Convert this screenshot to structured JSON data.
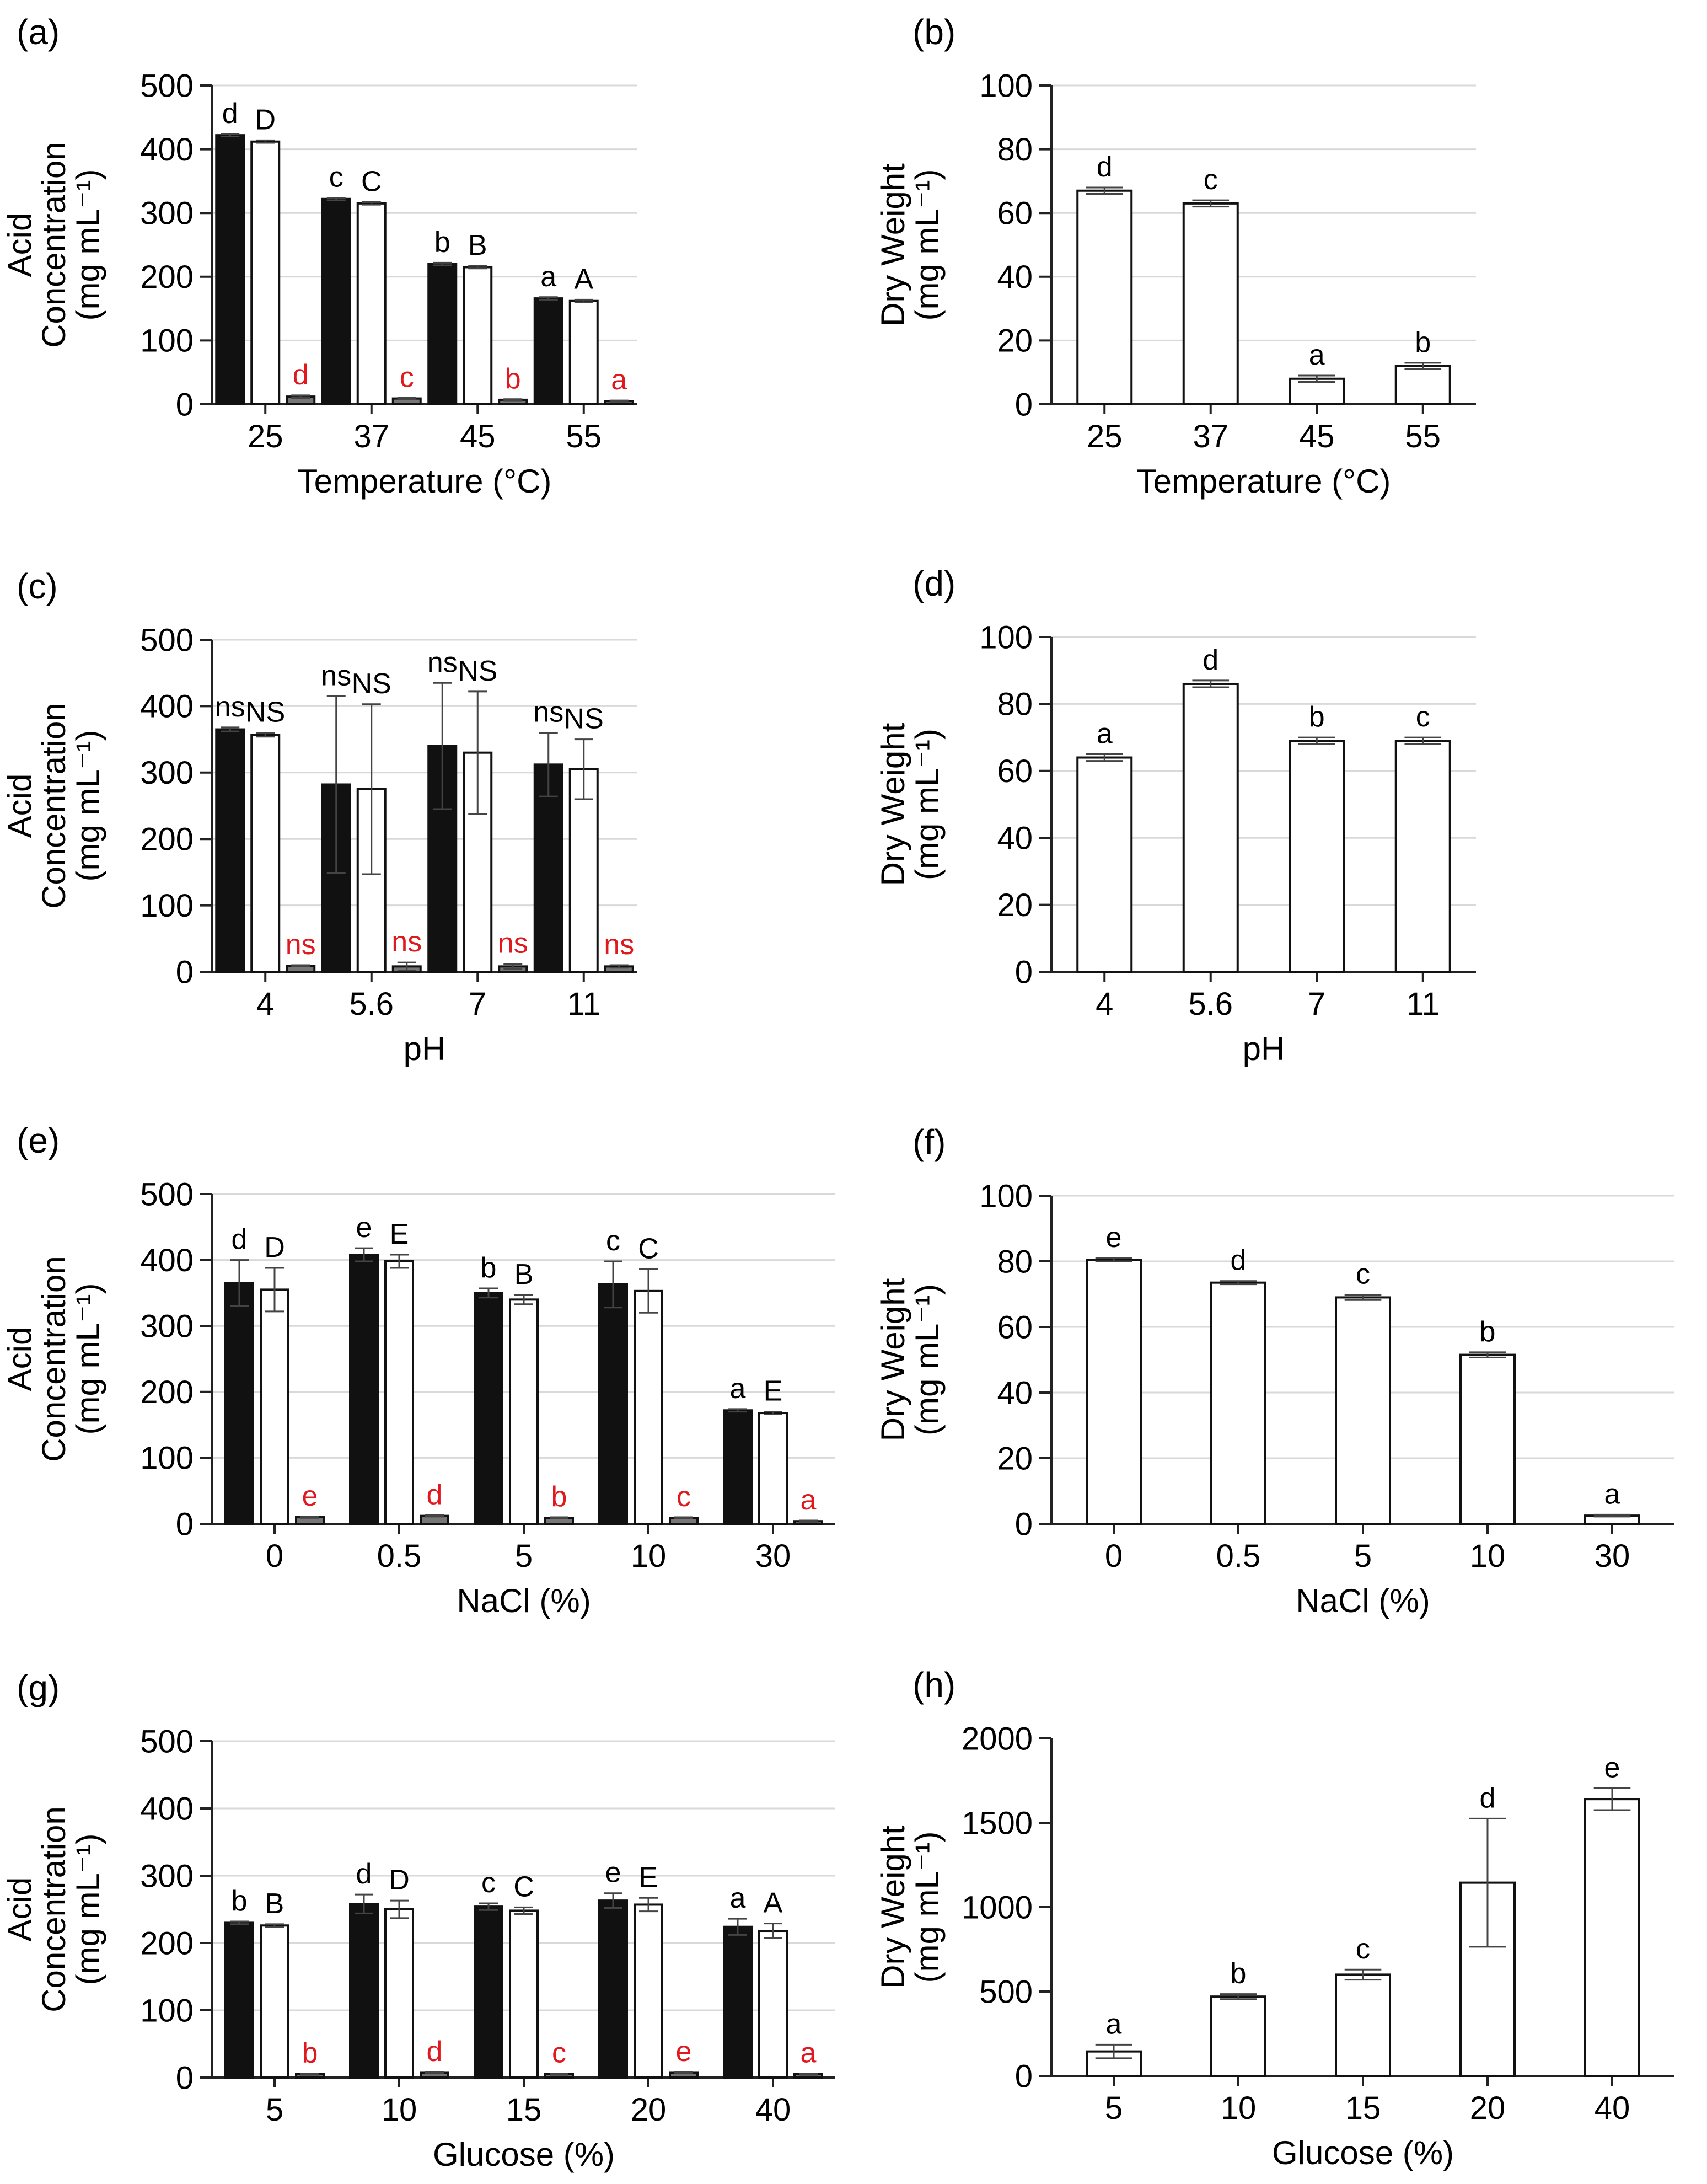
{
  "figure": {
    "panel_count": 8
  },
  "colors": {
    "black_bar": "#111111",
    "white_bar": "#ffffff",
    "gray_bar": "#777777",
    "axis": "#222222",
    "grid": "#d9d9d9",
    "red_label": "#e0191f"
  },
  "chart_data": [
    {
      "panel": "(a)",
      "type": "bar",
      "xlabel": "Temperature (°C)",
      "ylabel": [
        "Acid",
        "Concentration",
        "(mg mL⁻¹)"
      ],
      "ylim": [
        0,
        500
      ],
      "yticks": [
        "0",
        "100",
        "200",
        "300",
        "400",
        "500"
      ],
      "grid": true,
      "categories": [
        "25",
        "37",
        "45",
        "55"
      ],
      "series": [
        {
          "name": "black",
          "style": "black",
          "values": [
            422,
            322,
            220,
            166
          ],
          "errors": [
            2,
            2,
            2,
            2
          ],
          "labels": [
            "d",
            "c",
            "b",
            "a"
          ],
          "label_color": "black"
        },
        {
          "name": "white",
          "style": "white",
          "values": [
            412,
            315,
            215,
            162
          ],
          "errors": [
            2,
            2,
            2,
            2
          ],
          "labels": [
            "D",
            "C",
            "B",
            "A"
          ],
          "label_color": "black"
        },
        {
          "name": "gray",
          "style": "gray",
          "values": [
            12,
            9,
            7,
            5
          ],
          "errors": [
            2,
            1,
            1,
            1
          ],
          "labels": [
            "d",
            "c",
            "b",
            "a"
          ],
          "label_color": "red"
        }
      ]
    },
    {
      "panel": "(b)",
      "type": "bar",
      "xlabel": "Temperature (°C)",
      "ylabel": [
        "Dry Weight",
        "(mg mL⁻¹)"
      ],
      "ylim": [
        0,
        100
      ],
      "yticks": [
        "0",
        "20",
        "40",
        "60",
        "80",
        "100"
      ],
      "grid": true,
      "categories": [
        "25",
        "37",
        "45",
        "55"
      ],
      "series": [
        {
          "name": "dry weight",
          "style": "white",
          "values": [
            67,
            63,
            8,
            12
          ],
          "errors": [
            1,
            1,
            1,
            1
          ],
          "labels": [
            "d",
            "c",
            "a",
            "b"
          ],
          "label_color": "black"
        }
      ]
    },
    {
      "panel": "(c)",
      "type": "bar",
      "xlabel": "pH",
      "ylabel": [
        "Acid",
        "Concentration",
        "(mg mL⁻¹)"
      ],
      "ylim": [
        0,
        500
      ],
      "yticks": [
        "0",
        "100",
        "200",
        "300",
        "400",
        "500"
      ],
      "grid": true,
      "categories": [
        "4",
        "5.6",
        "7",
        "11"
      ],
      "series": [
        {
          "name": "black",
          "style": "black",
          "values": [
            365,
            282,
            340,
            312
          ],
          "errors": [
            3,
            133,
            95,
            48
          ],
          "labels": [
            "ns",
            "ns",
            "ns",
            "ns"
          ],
          "label_color": "black"
        },
        {
          "name": "white",
          "style": "white",
          "values": [
            357,
            275,
            330,
            305
          ],
          "errors": [
            3,
            128,
            92,
            45
          ],
          "labels": [
            "NS",
            "NS",
            "NS",
            "NS"
          ],
          "label_color": "black"
        },
        {
          "name": "gray",
          "style": "gray",
          "values": [
            9,
            8,
            8,
            8
          ],
          "errors": [
            1,
            6,
            4,
            2
          ],
          "labels": [
            "ns",
            "ns",
            "ns",
            "ns"
          ],
          "label_color": "red"
        }
      ]
    },
    {
      "panel": "(d)",
      "type": "bar",
      "xlabel": "pH",
      "ylabel": [
        "Dry Weight",
        "(mg mL⁻¹)"
      ],
      "ylim": [
        0,
        100
      ],
      "yticks": [
        "0",
        "20",
        "40",
        "60",
        "80",
        "100"
      ],
      "grid": true,
      "categories": [
        "4",
        "5.6",
        "7",
        "11"
      ],
      "series": [
        {
          "name": "dry weight",
          "style": "white",
          "values": [
            64,
            86,
            69,
            69
          ],
          "errors": [
            1,
            1,
            1,
            1
          ],
          "labels": [
            "a",
            "d",
            "b",
            "c"
          ],
          "label_color": "black"
        }
      ]
    },
    {
      "panel": "(e)",
      "type": "bar",
      "xlabel": "NaCl (%)",
      "ylabel": [
        "Acid",
        "Concentration",
        "(mg mL⁻¹)"
      ],
      "ylim": [
        0,
        500
      ],
      "yticks": [
        "0",
        "100",
        "200",
        "300",
        "400",
        "500"
      ],
      "grid": true,
      "categories": [
        "0",
        "0.5",
        "5",
        "10",
        "30"
      ],
      "series": [
        {
          "name": "black",
          "style": "black",
          "values": [
            365,
            408,
            350,
            363,
            172
          ],
          "errors": [
            35,
            10,
            7,
            35,
            2
          ],
          "labels": [
            "d",
            "e",
            "b",
            "c",
            "a"
          ],
          "label_color": "black"
        },
        {
          "name": "white",
          "style": "white",
          "values": [
            355,
            398,
            340,
            353,
            168
          ],
          "errors": [
            33,
            10,
            7,
            33,
            2
          ],
          "labels": [
            "D",
            "E",
            "B",
            "C",
            "E"
          ],
          "label_color": "black"
        },
        {
          "name": "gray",
          "style": "gray",
          "values": [
            10,
            12,
            9,
            9,
            4
          ],
          "errors": [
            1,
            1,
            1,
            1,
            1
          ],
          "labels": [
            "e",
            "d",
            "b",
            "c",
            "a"
          ],
          "label_color": "red"
        }
      ]
    },
    {
      "panel": "(f)",
      "type": "bar",
      "xlabel": "NaCl (%)",
      "ylabel": [
        "Dry Weight",
        "(mg mL⁻¹)"
      ],
      "ylim": [
        0,
        100
      ],
      "yticks": [
        "0",
        "20",
        "40",
        "60",
        "80",
        "100"
      ],
      "grid": true,
      "categories": [
        "0",
        "0.5",
        "5",
        "10",
        "30"
      ],
      "series": [
        {
          "name": "dry weight",
          "style": "white",
          "values": [
            80.5,
            73.5,
            69,
            51.5,
            2.5
          ],
          "errors": [
            0.5,
            0.5,
            0.8,
            0.8,
            0.3
          ],
          "labels": [
            "e",
            "d",
            "c",
            "b",
            "a"
          ],
          "label_color": "black"
        }
      ]
    },
    {
      "panel": "(g)",
      "type": "bar",
      "xlabel": "Glucose (%)",
      "ylabel": [
        "Acid",
        "Concentration",
        "(mg mL⁻¹)"
      ],
      "ylim": [
        0,
        500
      ],
      "yticks": [
        "0",
        "100",
        "200",
        "300",
        "400",
        "500"
      ],
      "grid": true,
      "categories": [
        "5",
        "10",
        "15",
        "20",
        "40"
      ],
      "series": [
        {
          "name": "black",
          "style": "black",
          "values": [
            230,
            258,
            254,
            263,
            224
          ],
          "errors": [
            2,
            14,
            5,
            11,
            12
          ],
          "labels": [
            "b",
            "d",
            "c",
            "e",
            "a"
          ],
          "label_color": "black"
        },
        {
          "name": "white",
          "style": "white",
          "values": [
            226,
            250,
            248,
            257,
            218
          ],
          "errors": [
            2,
            13,
            5,
            10,
            11
          ],
          "labels": [
            "B",
            "D",
            "C",
            "E",
            "A"
          ],
          "label_color": "black"
        },
        {
          "name": "gray",
          "style": "gray",
          "values": [
            5,
            7,
            5,
            7,
            5
          ],
          "errors": [
            1,
            1,
            1,
            1,
            1
          ],
          "labels": [
            "b",
            "d",
            "c",
            "e",
            "a"
          ],
          "label_color": "red"
        }
      ]
    },
    {
      "panel": "(h)",
      "type": "bar",
      "xlabel": "Glucose (%)",
      "ylabel": [
        "Dry Weight",
        "(mg mL⁻¹)"
      ],
      "ylim": [
        0,
        2000
      ],
      "yticks": [
        "0",
        "500",
        "1000",
        "1500",
        "2000"
      ],
      "grid": false,
      "categories": [
        "5",
        "10",
        "15",
        "20",
        "40"
      ],
      "series": [
        {
          "name": "dry weight",
          "style": "white",
          "values": [
            145,
            470,
            600,
            1145,
            1640
          ],
          "errors": [
            40,
            15,
            30,
            380,
            65
          ],
          "labels": [
            "a",
            "b",
            "c",
            "d",
            "e"
          ],
          "label_color": "black"
        }
      ]
    }
  ]
}
